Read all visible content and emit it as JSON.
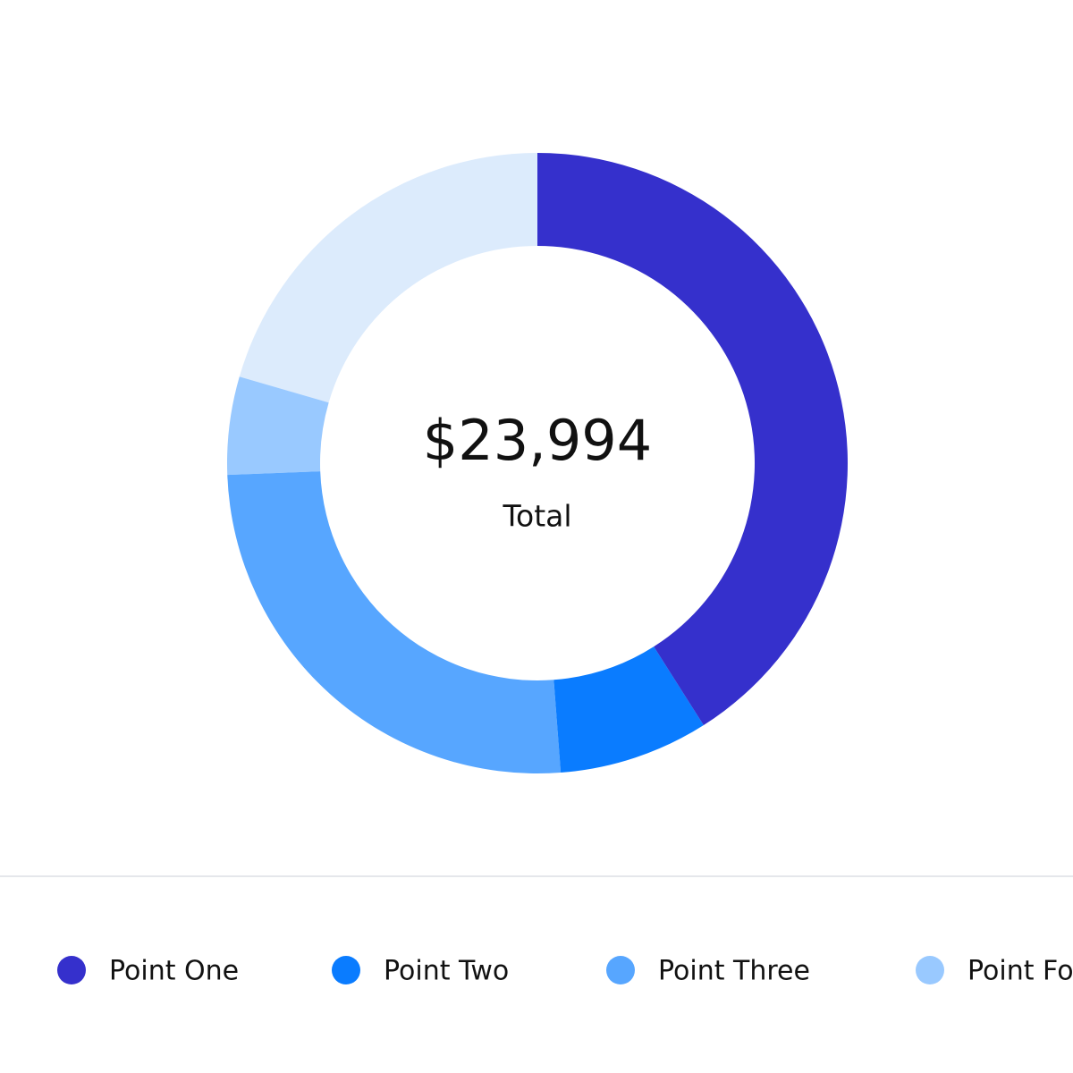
{
  "chart_data": {
    "type": "donut",
    "center_value": "$23,994",
    "center_label": "Total",
    "categories": [
      "Point One",
      "Point Two",
      "Point Three",
      "Point Four",
      null
    ],
    "values": [
      41,
      7.8,
      25.6,
      5.1,
      20.5
    ],
    "colors": [
      "#3530cc",
      "#0a7cff",
      "#57a6ff",
      "#99c9ff",
      "#dcebfc"
    ],
    "legend": "bottom"
  }
}
